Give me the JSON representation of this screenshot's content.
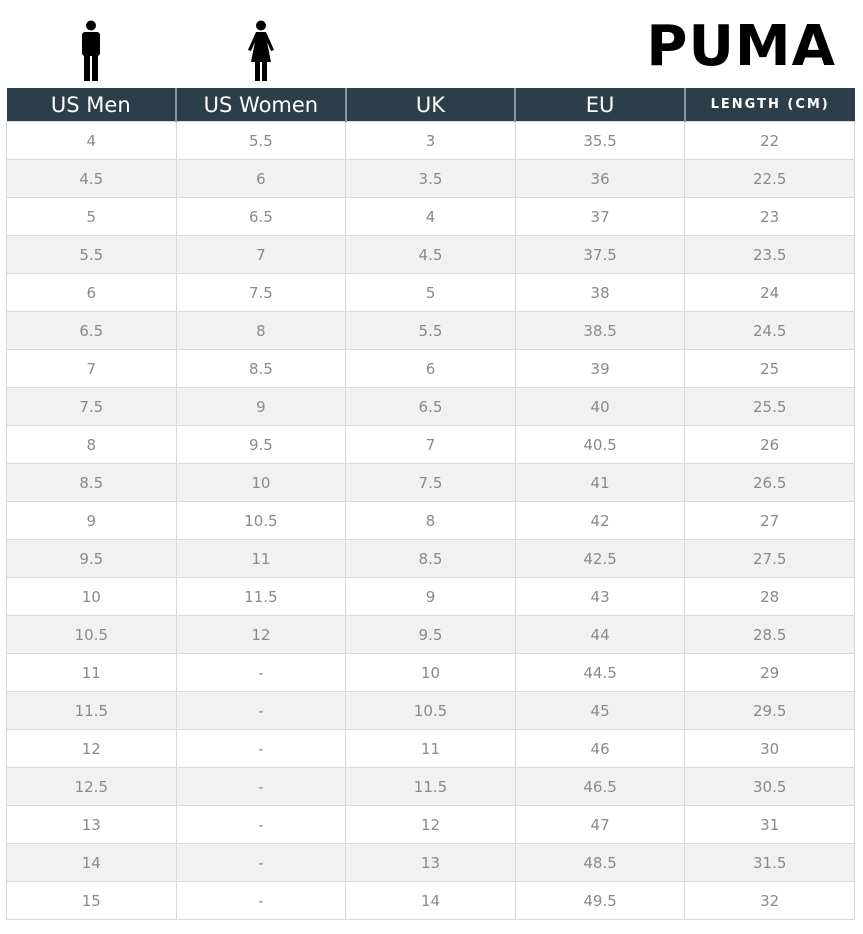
{
  "brand": "PUMA",
  "icons": {
    "men": "man-icon",
    "women": "woman-icon"
  },
  "colors": {
    "header_bg": "#2c3e4a",
    "header_text": "#ffffff",
    "cell_text": "#8a8a8a",
    "alt_row": "#f1f1f1"
  },
  "table": {
    "headers": [
      "US Men",
      "US Women",
      "UK",
      "EU",
      "LENGTH (CM)"
    ],
    "rows": [
      [
        "4",
        "5.5",
        "3",
        "35.5",
        "22"
      ],
      [
        "4.5",
        "6",
        "3.5",
        "36",
        "22.5"
      ],
      [
        "5",
        "6.5",
        "4",
        "37",
        "23"
      ],
      [
        "5.5",
        "7",
        "4.5",
        "37.5",
        "23.5"
      ],
      [
        "6",
        "7.5",
        "5",
        "38",
        "24"
      ],
      [
        "6.5",
        "8",
        "5.5",
        "38.5",
        "24.5"
      ],
      [
        "7",
        "8.5",
        "6",
        "39",
        "25"
      ],
      [
        "7.5",
        "9",
        "6.5",
        "40",
        "25.5"
      ],
      [
        "8",
        "9.5",
        "7",
        "40.5",
        "26"
      ],
      [
        "8.5",
        "10",
        "7.5",
        "41",
        "26.5"
      ],
      [
        "9",
        "10.5",
        "8",
        "42",
        "27"
      ],
      [
        "9.5",
        "11",
        "8.5",
        "42.5",
        "27.5"
      ],
      [
        "10",
        "11.5",
        "9",
        "43",
        "28"
      ],
      [
        "10.5",
        "12",
        "9.5",
        "44",
        "28.5"
      ],
      [
        "11",
        "-",
        "10",
        "44.5",
        "29"
      ],
      [
        "11.5",
        "-",
        "10.5",
        "45",
        "29.5"
      ],
      [
        "12",
        "-",
        "11",
        "46",
        "30"
      ],
      [
        "12.5",
        "-",
        "11.5",
        "46.5",
        "30.5"
      ],
      [
        "13",
        "-",
        "12",
        "47",
        "31"
      ],
      [
        "14",
        "-",
        "13",
        "48.5",
        "31.5"
      ],
      [
        "15",
        "-",
        "14",
        "49.5",
        "32"
      ]
    ]
  }
}
